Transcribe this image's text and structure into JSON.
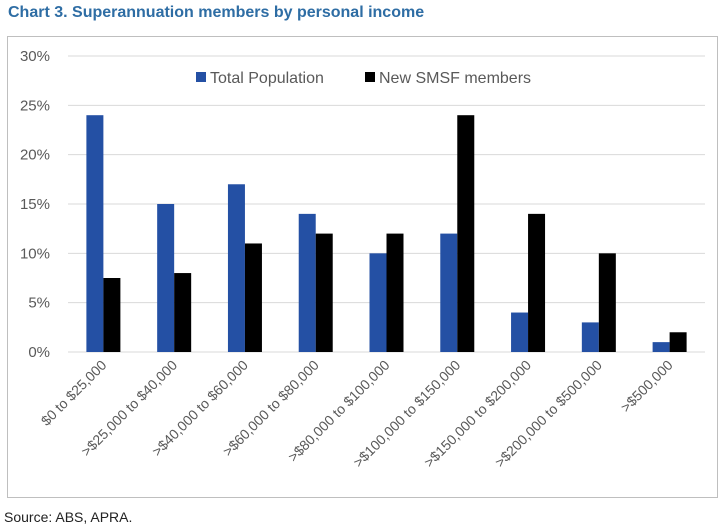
{
  "title": "Chart 3. Superannuation members by personal income",
  "source": "Source: ABS, APRA.",
  "colors": {
    "total": "#2450a4",
    "smsf": "#000000",
    "grid": "#d9d9d9",
    "axis_text": "#595959",
    "title": "#2e6da4"
  },
  "chart_data": {
    "type": "bar",
    "title": "",
    "xlabel": "",
    "ylabel": "",
    "ylim": [
      0,
      30
    ],
    "y_ticks": [
      "0%",
      "5%",
      "10%",
      "15%",
      "20%",
      "25%",
      "30%"
    ],
    "y_tick_values": [
      0,
      5,
      10,
      15,
      20,
      25,
      30
    ],
    "grid": true,
    "legend_position": "top-center",
    "categories": [
      "$0 to $25,000",
      ">$25,000 to $40,000",
      ">$40,000 to $60,000",
      ">$60,000 to $80,000",
      ">$80,000 to $100,000",
      ">$100,000 to $150,000",
      ">$150,000 to $200,000",
      ">$200,000 to $500,000",
      ">$500,000"
    ],
    "series": [
      {
        "name": "Total Population",
        "values": [
          24,
          15,
          17,
          14,
          10,
          12,
          4,
          3,
          1
        ]
      },
      {
        "name": "New SMSF members",
        "values": [
          7.5,
          8,
          11,
          12,
          12,
          24,
          14,
          10,
          2
        ]
      }
    ]
  }
}
